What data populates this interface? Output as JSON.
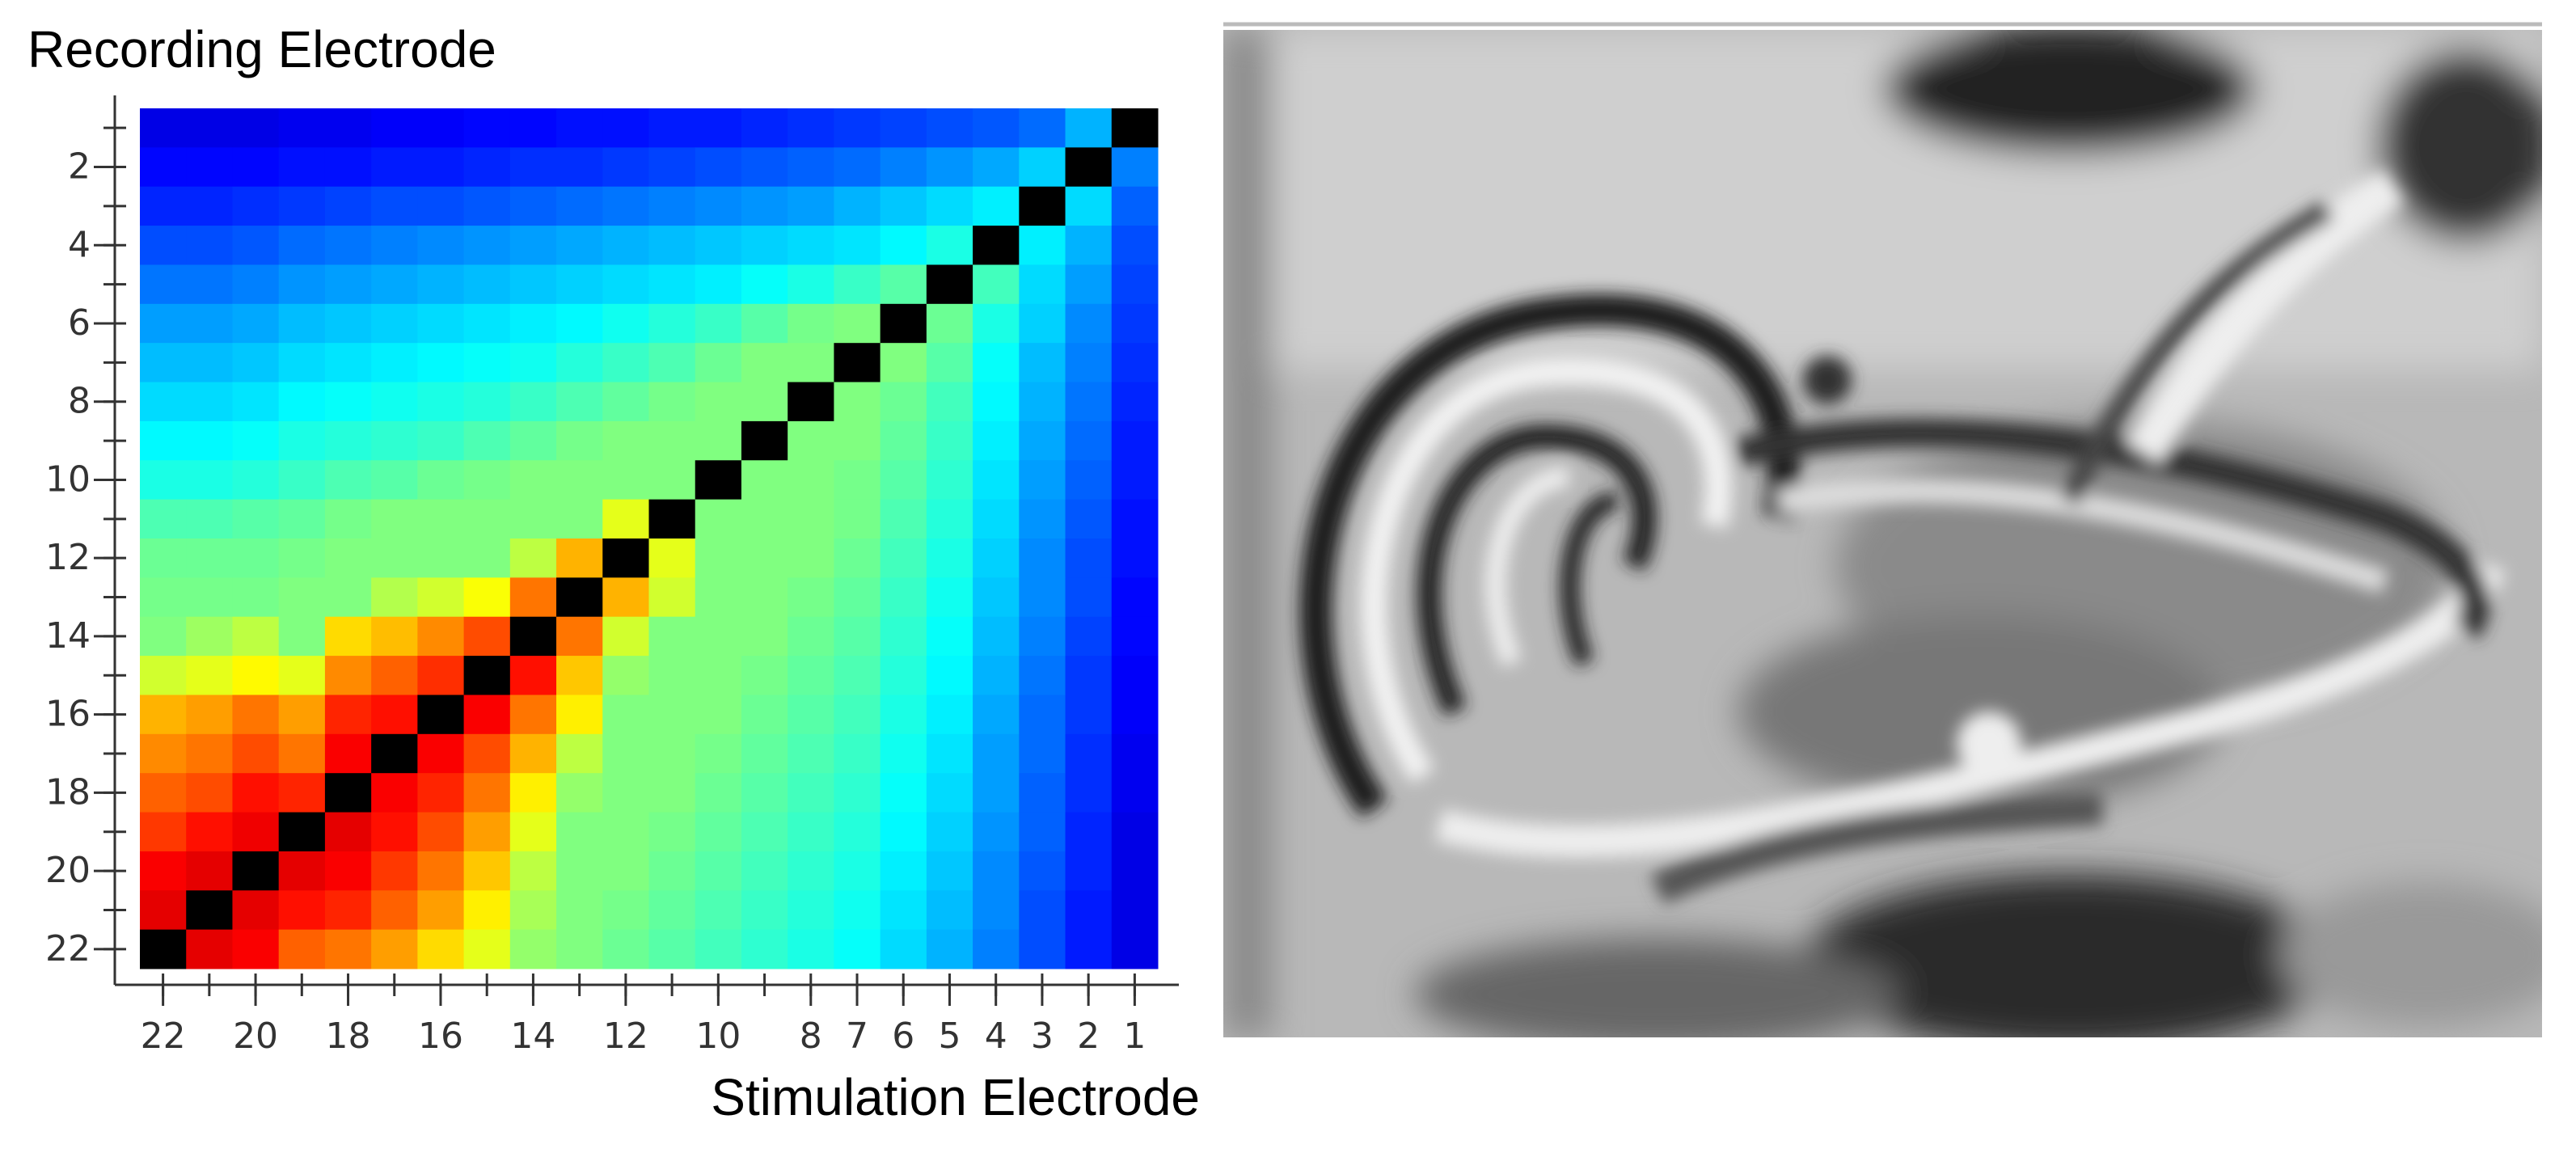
{
  "chart_data": {
    "type": "heatmap",
    "title": "Recording Electrode",
    "xlabel": "Stimulation Electrode",
    "colormap": "jet",
    "null_color": "#000000",
    "clim": [
      0,
      10
    ],
    "x": [
      22,
      21,
      20,
      19,
      18,
      17,
      16,
      15,
      14,
      13,
      12,
      11,
      10,
      9,
      8,
      7,
      6,
      5,
      4,
      3,
      2,
      1
    ],
    "y": [
      1,
      2,
      3,
      4,
      5,
      6,
      7,
      8,
      9,
      10,
      11,
      12,
      13,
      14,
      15,
      16,
      17,
      18,
      19,
      20,
      21,
      22
    ],
    "xlim": [
      22.5,
      0.5
    ],
    "ylim": [
      0.5,
      22.5
    ],
    "xticks": [
      22,
      20,
      18,
      16,
      14,
      12,
      10,
      8,
      7,
      6,
      5,
      4,
      3,
      2,
      1
    ],
    "yticks": [
      2,
      4,
      6,
      8,
      10,
      12,
      14,
      16,
      18,
      20,
      22
    ],
    "values": [
      [
        1.0,
        1.0,
        1.0,
        1.1,
        1.1,
        1.2,
        1.2,
        1.3,
        1.3,
        1.4,
        1.4,
        1.5,
        1.5,
        1.6,
        1.7,
        1.8,
        1.9,
        2.0,
        2.1,
        2.3,
        3.0,
        null
      ],
      [
        1.3,
        1.3,
        1.3,
        1.4,
        1.4,
        1.5,
        1.5,
        1.6,
        1.7,
        1.7,
        1.8,
        1.9,
        2.0,
        2.1,
        2.2,
        2.3,
        2.5,
        2.7,
        2.9,
        3.3,
        null,
        2.5
      ],
      [
        1.6,
        1.6,
        1.7,
        1.8,
        1.9,
        2.0,
        2.0,
        2.1,
        2.2,
        2.3,
        2.4,
        2.5,
        2.6,
        2.7,
        2.8,
        3.0,
        3.2,
        3.4,
        3.6,
        null,
        3.4,
        2.2
      ],
      [
        2.0,
        2.0,
        2.1,
        2.3,
        2.4,
        2.5,
        2.6,
        2.7,
        2.8,
        2.9,
        3.0,
        3.1,
        3.2,
        3.3,
        3.4,
        3.5,
        3.7,
        4.0,
        null,
        3.6,
        3.0,
        2.0
      ],
      [
        2.4,
        2.4,
        2.5,
        2.7,
        2.8,
        2.9,
        3.0,
        3.1,
        3.2,
        3.3,
        3.4,
        3.5,
        3.6,
        3.8,
        4.0,
        4.3,
        4.6,
        null,
        4.4,
        3.4,
        2.8,
        1.9
      ],
      [
        2.8,
        2.8,
        2.9,
        3.1,
        3.2,
        3.3,
        3.4,
        3.5,
        3.6,
        3.7,
        3.9,
        4.1,
        4.3,
        4.6,
        4.9,
        5.0,
        null,
        4.8,
        4.0,
        3.3,
        2.6,
        1.8
      ],
      [
        3.1,
        3.1,
        3.2,
        3.4,
        3.5,
        3.6,
        3.7,
        3.8,
        3.9,
        4.1,
        4.3,
        4.5,
        4.8,
        5.0,
        5.0,
        null,
        5.0,
        4.6,
        3.8,
        3.1,
        2.5,
        1.7
      ],
      [
        3.4,
        3.4,
        3.5,
        3.7,
        3.8,
        3.9,
        4.0,
        4.1,
        4.3,
        4.5,
        4.7,
        4.9,
        5.0,
        5.0,
        null,
        5.0,
        4.8,
        4.4,
        3.7,
        3.0,
        2.4,
        1.6
      ],
      [
        3.7,
        3.7,
        3.8,
        4.0,
        4.1,
        4.2,
        4.3,
        4.5,
        4.7,
        4.9,
        5.0,
        5.0,
        5.0,
        null,
        5.0,
        5.0,
        4.7,
        4.3,
        3.6,
        2.9,
        2.3,
        1.5
      ],
      [
        4.0,
        4.0,
        4.1,
        4.3,
        4.5,
        4.6,
        4.8,
        4.9,
        5.0,
        5.0,
        5.0,
        5.0,
        null,
        5.0,
        5.0,
        4.9,
        4.6,
        4.2,
        3.5,
        2.8,
        2.2,
        1.5
      ],
      [
        4.5,
        4.5,
        4.6,
        4.7,
        4.9,
        5.0,
        5.0,
        5.0,
        5.0,
        5.0,
        6.0,
        null,
        5.0,
        5.0,
        5.0,
        4.9,
        4.5,
        4.1,
        3.4,
        2.7,
        2.1,
        1.4
      ],
      [
        4.8,
        4.8,
        4.8,
        4.9,
        5.0,
        5.0,
        5.0,
        5.0,
        5.6,
        7.0,
        null,
        6.0,
        5.0,
        5.0,
        5.0,
        4.8,
        4.4,
        4.0,
        3.3,
        2.6,
        2.0,
        1.4
      ],
      [
        4.9,
        4.9,
        4.9,
        5.0,
        5.0,
        5.5,
        5.8,
        6.2,
        7.6,
        null,
        7.0,
        5.8,
        5.0,
        5.0,
        4.9,
        4.7,
        4.3,
        3.9,
        3.2,
        2.6,
        2.0,
        1.3
      ],
      [
        5.0,
        5.3,
        5.6,
        5.0,
        6.6,
        6.9,
        7.4,
        8.0,
        null,
        7.6,
        5.8,
        5.0,
        5.0,
        5.0,
        4.8,
        4.6,
        4.2,
        3.8,
        3.1,
        2.5,
        1.9,
        1.3
      ],
      [
        5.8,
        6.0,
        6.3,
        6.0,
        7.4,
        7.8,
        8.3,
        null,
        8.6,
        6.8,
        5.2,
        5.0,
        5.0,
        4.9,
        4.7,
        4.5,
        4.1,
        3.7,
        3.0,
        2.4,
        1.8,
        1.2
      ],
      [
        7.0,
        7.2,
        7.6,
        7.2,
        8.4,
        8.6,
        null,
        8.8,
        7.6,
        6.4,
        5.0,
        5.0,
        5.0,
        4.8,
        4.6,
        4.4,
        4.0,
        3.6,
        2.9,
        2.3,
        1.8,
        1.2
      ],
      [
        7.4,
        7.6,
        8.0,
        7.6,
        8.8,
        null,
        8.8,
        8.0,
        7.0,
        5.6,
        5.0,
        5.0,
        4.9,
        4.7,
        4.5,
        4.3,
        3.9,
        3.5,
        2.8,
        2.3,
        1.7,
        1.1
      ],
      [
        7.8,
        8.0,
        8.6,
        8.4,
        null,
        8.8,
        8.4,
        7.6,
        6.4,
        5.2,
        5.0,
        5.0,
        4.8,
        4.6,
        4.4,
        4.2,
        3.8,
        3.4,
        2.8,
        2.2,
        1.7,
        1.1
      ],
      [
        8.2,
        8.6,
        8.9,
        null,
        9.0,
        8.6,
        8.0,
        7.2,
        6.0,
        5.0,
        5.0,
        4.9,
        4.7,
        4.5,
        4.3,
        4.1,
        3.7,
        3.3,
        2.7,
        2.2,
        1.6,
        1.0
      ],
      [
        8.8,
        9.0,
        null,
        9.0,
        8.8,
        8.2,
        7.6,
        6.8,
        5.6,
        5.0,
        5.0,
        4.8,
        4.6,
        4.4,
        4.2,
        4.0,
        3.6,
        3.2,
        2.6,
        2.1,
        1.6,
        1.0
      ],
      [
        9.0,
        null,
        9.0,
        8.6,
        8.4,
        7.8,
        7.2,
        6.4,
        5.4,
        5.0,
        4.9,
        4.7,
        4.5,
        4.3,
        4.1,
        3.9,
        3.5,
        3.1,
        2.6,
        2.0,
        1.5,
        1.0
      ],
      [
        null,
        9.0,
        8.8,
        7.8,
        7.6,
        7.2,
        6.6,
        6.0,
        5.2,
        5.0,
        4.8,
        4.6,
        4.4,
        4.2,
        4.0,
        3.8,
        3.4,
        3.0,
        2.5,
        2.0,
        1.5,
        1.0
      ]
    ]
  }
}
